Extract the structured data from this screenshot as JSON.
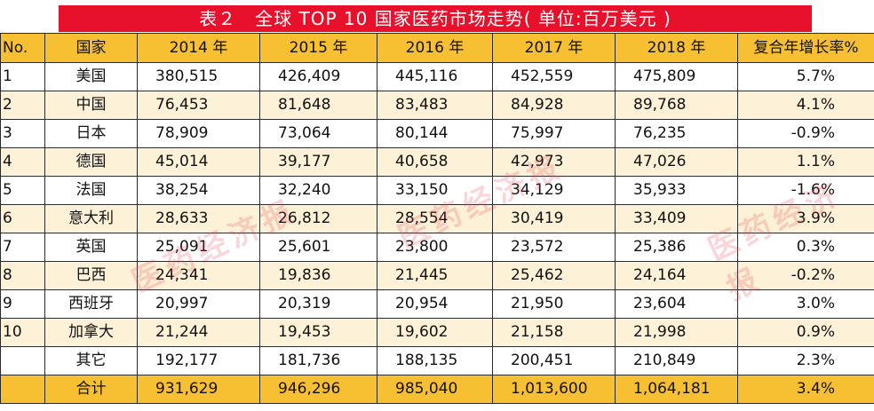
{
  "title": "表２　全球 TOP  10 国家医药市场走势( 单位:百万美元 )",
  "headers": [
    "No.",
    "国家",
    "2014 年",
    "2015 年",
    "2016 年",
    "2017 年",
    "2018 年",
    "复合年增长率%"
  ],
  "rows": [
    {
      "no": "1",
      "country": "美国",
      "y2014": "380,515",
      "y2015": "426,409",
      "y2016": "445,116",
      "y2017": "452,559",
      "y2018": "475,809",
      "cagr": "5.7%"
    },
    {
      "no": "2",
      "country": "中国",
      "y2014": "76,453",
      "y2015": "81,648",
      "y2016": "83,483",
      "y2017": "84,928",
      "y2018": "89,768",
      "cagr": "4.1%"
    },
    {
      "no": "3",
      "country": "日本",
      "y2014": "78,909",
      "y2015": "73,064",
      "y2016": "80,144",
      "y2017": "75,997",
      "y2018": "76,235",
      "cagr": "-0.9%"
    },
    {
      "no": "4",
      "country": "德国",
      "y2014": "45,014",
      "y2015": "39,177",
      "y2016": "40,658",
      "y2017": "42,973",
      "y2018": "47,026",
      "cagr": "1.1%"
    },
    {
      "no": "5",
      "country": "法国",
      "y2014": "38,254",
      "y2015": "32,240",
      "y2016": "33,150",
      "y2017": "34,129",
      "y2018": "35,933",
      "cagr": "-1.6%"
    },
    {
      "no": "6",
      "country": "意大利",
      "y2014": "28,633",
      "y2015": "26,812",
      "y2016": "28,554",
      "y2017": "30,419",
      "y2018": "33,409",
      "cagr": "3.9%"
    },
    {
      "no": "7",
      "country": "英国",
      "y2014": "25,091",
      "y2015": "25,601",
      "y2016": "23,800",
      "y2017": "23,572",
      "y2018": "25,386",
      "cagr": "0.3%"
    },
    {
      "no": "8",
      "country": "巴西",
      "y2014": "24,341",
      "y2015": "19,836",
      "y2016": "21,445",
      "y2017": "25,462",
      "y2018": "24,164",
      "cagr": "-0.2%"
    },
    {
      "no": "9",
      "country": "西班牙",
      "y2014": "20,997",
      "y2015": "20,319",
      "y2016": "20,954",
      "y2017": "21,950",
      "y2018": "23,604",
      "cagr": "3.0%"
    },
    {
      "no": "10",
      "country": "加拿大",
      "y2014": "21,244",
      "y2015": "19,453",
      "y2016": "19,602",
      "y2017": "21,158",
      "y2018": "21,998",
      "cagr": "0.9%"
    },
    {
      "no": "",
      "country": "其它",
      "y2014": "192,177",
      "y2015": "181,736",
      "y2016": "188,135",
      "y2017": "200,451",
      "y2018": "210,849",
      "cagr": "2.3%"
    },
    {
      "no": "",
      "country": "合计",
      "y2014": "931,629",
      "y2015": "946,296",
      "y2016": "985,040",
      "y2017": "1,013,600",
      "y2018": "1,064,181",
      "cagr": "3.4%"
    }
  ],
  "watermark": "医药经济报",
  "colors": {
    "title_bg": "#e8112c",
    "header_bg": "#f7c033",
    "band_bg": "#fdf1d8",
    "watermark": "#de4650"
  }
}
